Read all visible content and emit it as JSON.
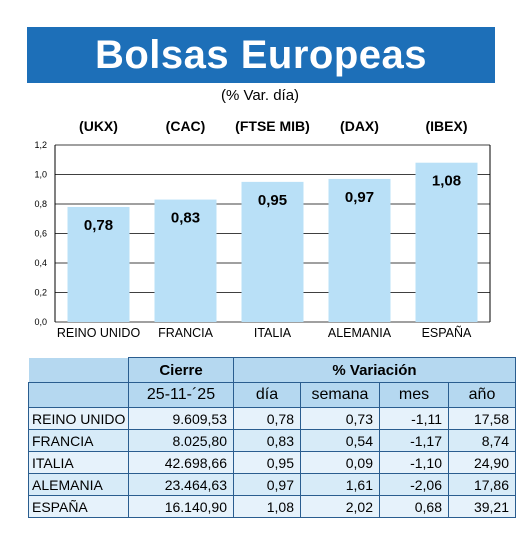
{
  "title": "Bolsas Europeas",
  "subtitle": "(% Var. día)",
  "chart_data": {
    "type": "bar",
    "categories": [
      "REINO UNIDO",
      "FRANCIA",
      "ITALIA",
      "ALEMANIA",
      "ESPAÑA"
    ],
    "index_labels": [
      "(UKX)",
      "(CAC)",
      "(FTSE MIB)",
      "(DAX)",
      "(IBEX)"
    ],
    "values": [
      0.78,
      0.83,
      0.95,
      0.97,
      1.08
    ],
    "value_labels": [
      "0,78",
      "0,83",
      "0,95",
      "0,97",
      "1,08"
    ],
    "yticks": [
      "0,0",
      "0,2",
      "0,4",
      "0,6",
      "0,8",
      "1,0",
      "1,2"
    ],
    "ylim": [
      0,
      1.2
    ],
    "grid": true,
    "bar_color": "#b9e0f7"
  },
  "table": {
    "header_close": "Cierre",
    "header_var": "% Variación",
    "date": "25-11-´25",
    "col_day": "día",
    "col_week": "semana",
    "col_month": "mes",
    "col_year": "año",
    "rows": [
      {
        "name": "REINO UNIDO",
        "close": "9.609,53",
        "day": "0,78",
        "week": "0,73",
        "month": "-1,11",
        "year": "17,58"
      },
      {
        "name": "FRANCIA",
        "close": "8.025,80",
        "day": "0,83",
        "week": "0,54",
        "month": "-1,17",
        "year": "8,74"
      },
      {
        "name": "ITALIA",
        "close": "42.698,66",
        "day": "0,95",
        "week": "0,09",
        "month": "-1,10",
        "year": "24,90"
      },
      {
        "name": "ALEMANIA",
        "close": "23.464,63",
        "day": "0,97",
        "week": "1,61",
        "month": "-2,06",
        "year": "17,86"
      },
      {
        "name": "ESPAÑA",
        "close": "16.140,90",
        "day": "1,08",
        "week": "2,02",
        "month": "0,68",
        "year": "39,21"
      }
    ]
  }
}
